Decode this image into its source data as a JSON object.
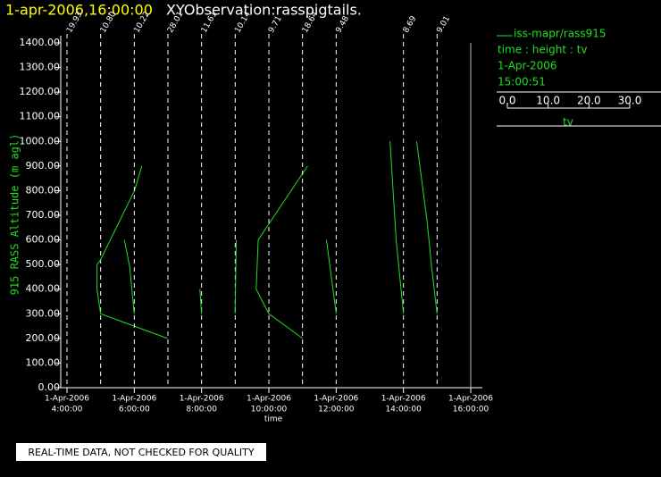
{
  "chart_data": {
    "type": "profile",
    "title": "1-apr-2006,16:00:00",
    "subtitle": "XYObservation:rasspigtails.",
    "ylabel": "915 RASS Altitude (m agl)",
    "xlabel": "time",
    "color": "#22dd22",
    "xlim": [
      "2006-04-01T04:00",
      "2006-04-01T16:00"
    ],
    "xticks": [
      {
        "value": "2006-04-01T04:00",
        "label": [
          "1-Apr-2006",
          "4:00:00"
        ]
      },
      {
        "value": "2006-04-01T06:00",
        "label": [
          "1-Apr-2006",
          "6:00:00"
        ]
      },
      {
        "value": "2006-04-01T08:00",
        "label": [
          "1-Apr-2006",
          "8:00:00"
        ]
      },
      {
        "value": "2006-04-01T10:00",
        "label": [
          "1-Apr-2006",
          "10:00:00"
        ]
      },
      {
        "value": "2006-04-01T12:00",
        "label": [
          "1-Apr-2006",
          "12:00:00"
        ]
      },
      {
        "value": "2006-04-01T14:00",
        "label": [
          "1-Apr-2006",
          "14:00:00"
        ]
      },
      {
        "value": "2006-04-01T16:00",
        "label": [
          "1-Apr-2006",
          "16:00:00"
        ]
      }
    ],
    "ylim": [
      0,
      1400
    ],
    "yticks": [
      {
        "value": 0,
        "label": "0.00"
      },
      {
        "value": 100,
        "label": "100.00"
      },
      {
        "value": 200,
        "label": "200.00"
      },
      {
        "value": 300,
        "label": "300.00"
      },
      {
        "value": 400,
        "label": "400.00"
      },
      {
        "value": 500,
        "label": "500.00"
      },
      {
        "value": 600,
        "label": "600.00"
      },
      {
        "value": 700,
        "label": "700.00"
      },
      {
        "value": 800,
        "label": "800.00"
      },
      {
        "value": 900,
        "label": "900.00"
      },
      {
        "value": 1000,
        "label": "1000.00"
      },
      {
        "value": 1100,
        "label": "1100.00"
      },
      {
        "value": 1200,
        "label": "1200.00"
      },
      {
        "value": 1300,
        "label": "1300.00"
      },
      {
        "value": 1400,
        "label": "1400.00"
      }
    ],
    "tvlim": [
      0,
      30
    ],
    "tvticks": [
      {
        "value": 0,
        "label": "0.0"
      },
      {
        "value": 10,
        "label": "10.0"
      },
      {
        "value": 20,
        "label": "20.0"
      },
      {
        "value": 30,
        "label": "30.0"
      }
    ],
    "legend": {
      "name": "iss-mapr/rass915",
      "fields": "time : height : tv",
      "date": "1-Apr-2006",
      "time": "15:00:51",
      "scale_label": "tv"
    },
    "profiles": [
      {
        "time": "2006-04-01T04:00",
        "ref": {
          "value": 19.93,
          "label": "19.93"
        },
        "heights": [],
        "values": []
      },
      {
        "time": "2006-04-01T05:00",
        "ref": {
          "value": 10.8,
          "label": "10.80"
        },
        "heights": [
          200,
          300,
          400,
          500,
          520,
          800,
          900
        ],
        "values": [
          27.2,
          10.8,
          9.9,
          9.9,
          10.8,
          19.1,
          20.9
        ]
      },
      {
        "time": "2006-04-01T06:00",
        "ref": {
          "value": 10.22,
          "label": "10.22"
        },
        "heights": [
          600,
          490,
          300
        ],
        "values": [
          7.8,
          9.1,
          10.2
        ]
      },
      {
        "time": "2006-04-01T07:00",
        "ref": {
          "value": 28.01,
          "label": "28.01"
        },
        "heights": [],
        "values": []
      },
      {
        "time": "2006-04-01T08:00",
        "ref": {
          "value": 11.61,
          "label": "11.61"
        },
        "heights": [
          400,
          300
        ],
        "values": [
          11.2,
          11.6
        ]
      },
      {
        "time": "2006-04-01T09:00",
        "ref": {
          "value": 10.14,
          "label": "10.14"
        },
        "heights": [
          300,
          600
        ],
        "values": [
          10.1,
          10.4
        ]
      },
      {
        "time": "2006-04-01T10:00",
        "ref": {
          "value": 9.71,
          "label": "9.71"
        },
        "heights": [
          200,
          300,
          400,
          600,
          900
        ],
        "values": [
          18.0,
          9.7,
          6.6,
          7.1,
          19.2
        ]
      },
      {
        "time": "2006-04-01T11:00",
        "ref": {
          "value": 18.64,
          "label": "18.64"
        },
        "heights": [],
        "values": []
      },
      {
        "time": "2006-04-01T12:00",
        "ref": {
          "value": 9.48,
          "label": "9.48"
        },
        "heights": [
          600,
          300
        ],
        "values": [
          7.1,
          9.5
        ]
      },
      {
        "time": "2006-04-01T14:00",
        "ref": {
          "value": 8.69,
          "label": "8.69"
        },
        "heights": [
          1000,
          600,
          300
        ],
        "values": [
          5.4,
          6.9,
          8.7
        ]
      },
      {
        "time": "2006-04-01T15:00",
        "ref": {
          "value": 9.01,
          "label": "9.01"
        },
        "heights": [
          1000,
          670,
          485,
          300
        ],
        "values": [
          4.0,
          6.6,
          7.7,
          9.0
        ]
      }
    ],
    "footer": "REAL-TIME DATA, NOT CHECKED FOR QUALITY"
  }
}
